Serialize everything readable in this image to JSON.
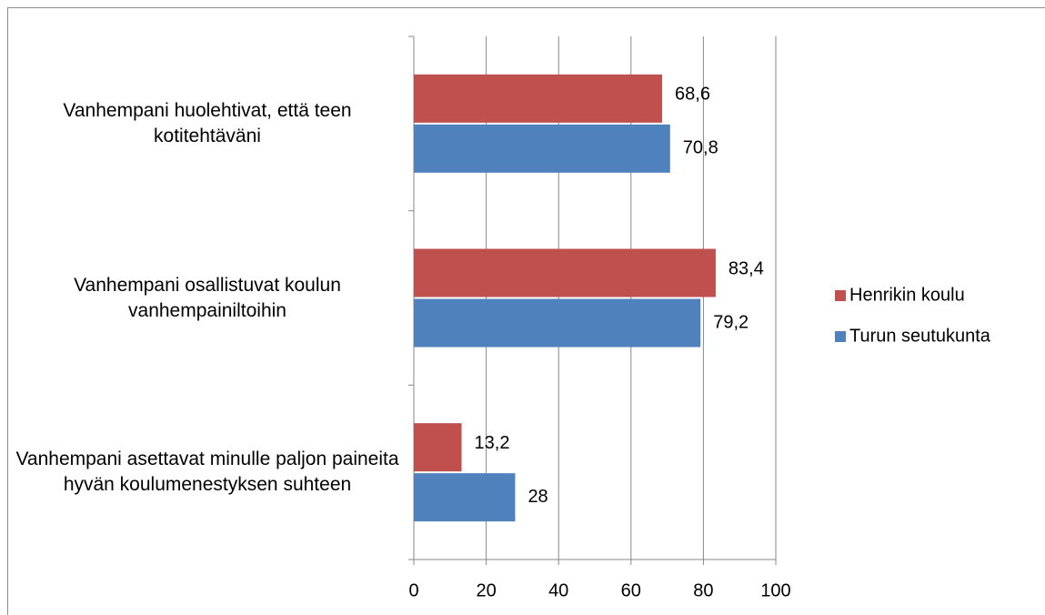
{
  "chart_data": {
    "type": "hbar",
    "categories": [
      "Vanhempani huolehtivat, että teen kotitehtäväni",
      "Vanhempani osallistuvat koulun vanhempainiltoihin",
      "Vanhempani asettavat minulle paljon paineita hyvän koulumenestyksen suhteen"
    ],
    "series": [
      {
        "name": "Henrikin koulu",
        "color": "#c0504d",
        "values": [
          68.6,
          83.4,
          13.2
        ],
        "value_labels": [
          "68,6",
          "83,4",
          "13,2"
        ]
      },
      {
        "name": "Turun seutukunta",
        "color": "#4f81bd",
        "values": [
          70.8,
          79.2,
          28
        ],
        "value_labels": [
          "70,8",
          "79,2",
          "28"
        ]
      }
    ],
    "xlim": [
      0,
      100
    ],
    "xticks": [
      0,
      20,
      40,
      60,
      80,
      100
    ],
    "grid": true,
    "legend": "right"
  }
}
